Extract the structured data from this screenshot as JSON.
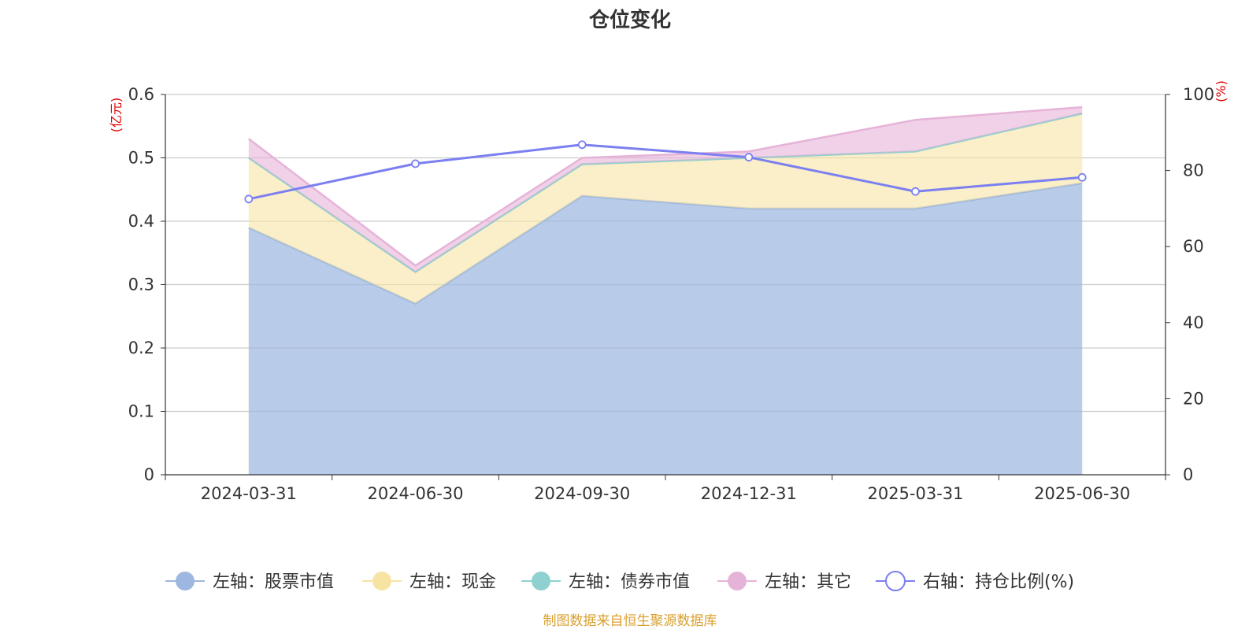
{
  "chart_data": {
    "type": "area",
    "title": "仓位变化",
    "left_axis_unit": "(亿元)",
    "right_axis_unit": "(%)",
    "categories": [
      "2024-03-31",
      "2024-06-30",
      "2024-09-30",
      "2024-12-31",
      "2025-03-31",
      "2025-06-30"
    ],
    "ylim_left": [
      0,
      0.6
    ],
    "yticks_left": [
      "0",
      "0.1",
      "0.2",
      "0.3",
      "0.4",
      "0.5",
      "0.6"
    ],
    "ylim_right": [
      0,
      100
    ],
    "yticks_right": [
      "0",
      "20",
      "40",
      "60",
      "80",
      "100"
    ],
    "grid": true,
    "legend_position": "bottom",
    "stacked": true,
    "series": [
      {
        "name": "左轴：股票市值",
        "axis": "left",
        "kind": "area",
        "color": "#9db7e0",
        "values": [
          0.39,
          0.27,
          0.44,
          0.42,
          0.42,
          0.46
        ]
      },
      {
        "name": "左轴：现金",
        "axis": "left",
        "kind": "area",
        "color": "#f7e4a3",
        "values": [
          0.11,
          0.05,
          0.05,
          0.08,
          0.09,
          0.11
        ]
      },
      {
        "name": "左轴：债券市值",
        "axis": "left",
        "kind": "area",
        "color": "#8fd0d0",
        "values": [
          0,
          0,
          0,
          0,
          0,
          0
        ]
      },
      {
        "name": "左轴：其它",
        "axis": "left",
        "kind": "area",
        "color": "#e6b3d8",
        "values": [
          0.03,
          0.01,
          0.01,
          0.01,
          0.05,
          0.01
        ]
      },
      {
        "name": "右轴：持仓比例(%)",
        "axis": "right",
        "kind": "line",
        "color": "#7b7ff0",
        "values": [
          72.5,
          81.8,
          86.8,
          83.5,
          74.5,
          78.2
        ]
      }
    ],
    "footnote": "制图数据来自恒生聚源数据库"
  }
}
